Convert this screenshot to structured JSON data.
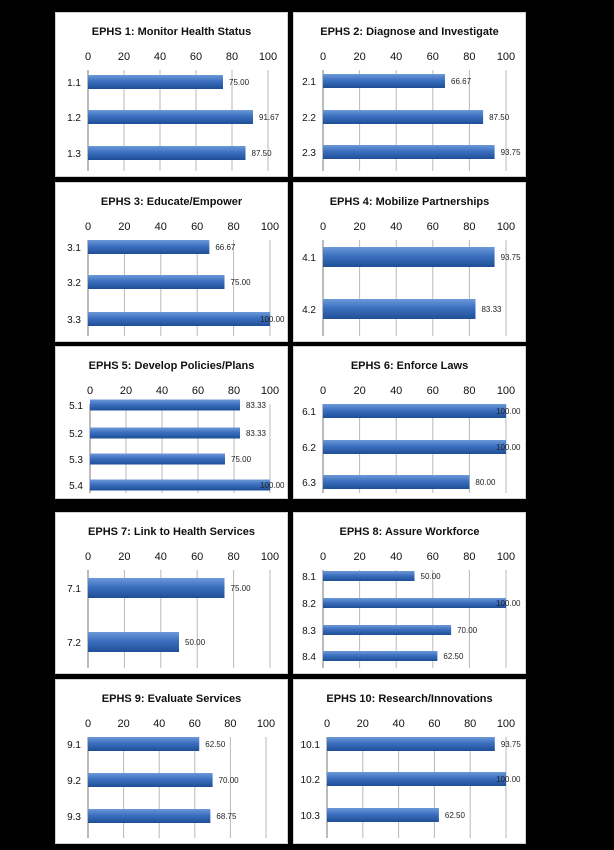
{
  "colors": {
    "bar": "#3b6fbf",
    "bar_light": "#6d99d8",
    "bar_dark": "#1f4e96",
    "grid": "#b8b8b8"
  },
  "chart_data": [
    {
      "type": "bar",
      "orientation": "horizontal",
      "title": "EPHS 1: Monitor Health Status",
      "categories": [
        "1.1",
        "1.2",
        "1.3"
      ],
      "values": [
        75.0,
        91.67,
        87.5
      ],
      "data_labels": [
        "75.00",
        "91.67",
        "87.50"
      ],
      "xlim": [
        0,
        100
      ],
      "xticks": [
        "0",
        "20",
        "40",
        "60",
        "80",
        "100"
      ],
      "grid": true,
      "axis_position": "top"
    },
    {
      "type": "bar",
      "orientation": "horizontal",
      "title": "EPHS 2: Diagnose and Investigate",
      "categories": [
        "2.1",
        "2.2",
        "2.3"
      ],
      "values": [
        66.67,
        87.5,
        93.75
      ],
      "data_labels": [
        "66.67",
        "87.50",
        "93.75"
      ],
      "xlim": [
        0,
        100
      ],
      "xticks": [
        "0",
        "20",
        "40",
        "60",
        "80",
        "100"
      ],
      "grid": true,
      "axis_position": "top"
    },
    {
      "type": "bar",
      "orientation": "horizontal",
      "title": "EPHS 3: Educate/Empower",
      "categories": [
        "3.1",
        "3.2",
        "3.3"
      ],
      "values": [
        66.67,
        75.0,
        100.0
      ],
      "data_labels": [
        "66.67",
        "75.00",
        "100.00"
      ],
      "xlim": [
        0,
        100
      ],
      "xticks": [
        "0",
        "20",
        "40",
        "60",
        "80",
        "100"
      ],
      "grid": true,
      "axis_position": "top"
    },
    {
      "type": "bar",
      "orientation": "horizontal",
      "title": "EPHS 4: Mobilize Partnerships",
      "categories": [
        "4.1",
        "4.2"
      ],
      "values": [
        93.75,
        83.33
      ],
      "data_labels": [
        "93.75",
        "83.33"
      ],
      "xlim": [
        0,
        100
      ],
      "xticks": [
        "0",
        "20",
        "40",
        "60",
        "80",
        "100"
      ],
      "grid": true,
      "axis_position": "top"
    },
    {
      "type": "bar",
      "orientation": "horizontal",
      "title": "EPHS 5: Develop Policies/Plans",
      "categories": [
        "5.1",
        "5.2",
        "5.3",
        "5.4"
      ],
      "values": [
        83.33,
        83.33,
        75.0,
        100.0
      ],
      "data_labels": [
        "83.33",
        "83.33",
        "75.00",
        "100.00"
      ],
      "xlim": [
        0,
        100
      ],
      "xticks": [
        "0",
        "20",
        "40",
        "60",
        "80",
        "100"
      ],
      "grid": true,
      "axis_position": "top"
    },
    {
      "type": "bar",
      "orientation": "horizontal",
      "title": "EPHS 6: Enforce Laws",
      "categories": [
        "6.1",
        "6.2",
        "6.3"
      ],
      "values": [
        100.0,
        100.0,
        80.0
      ],
      "data_labels": [
        "100.00",
        "100.00",
        "80.00"
      ],
      "xlim": [
        0,
        100
      ],
      "xticks": [
        "0",
        "20",
        "40",
        "60",
        "80",
        "100"
      ],
      "grid": true,
      "axis_position": "top"
    },
    {
      "type": "bar",
      "orientation": "horizontal",
      "title": "EPHS 7: Link to Health Services",
      "categories": [
        "7.1",
        "7.2"
      ],
      "values": [
        75.0,
        50.0
      ],
      "data_labels": [
        "75.00",
        "50.00"
      ],
      "xlim": [
        0,
        100
      ],
      "xticks": [
        "0",
        "20",
        "40",
        "60",
        "80",
        "100"
      ],
      "grid": true,
      "axis_position": "top"
    },
    {
      "type": "bar",
      "orientation": "horizontal",
      "title": "EPHS 8: Assure Workforce",
      "categories": [
        "8.1",
        "8.2",
        "8.3",
        "8.4"
      ],
      "values": [
        50.0,
        100.0,
        70.0,
        62.5
      ],
      "data_labels": [
        "50.00",
        "100.00",
        "70.00",
        "62.50"
      ],
      "xlim": [
        0,
        100
      ],
      "xticks": [
        "0",
        "20",
        "40",
        "60",
        "80",
        "100"
      ],
      "grid": true,
      "axis_position": "top"
    },
    {
      "type": "bar",
      "orientation": "horizontal",
      "title": "EPHS 9: Evaluate Services",
      "categories": [
        "9.1",
        "9.2",
        "9.3"
      ],
      "values": [
        62.5,
        70.0,
        68.75
      ],
      "data_labels": [
        "62.50",
        "70.00",
        "68.75"
      ],
      "xlim": [
        0,
        100
      ],
      "xticks": [
        "0",
        "20",
        "40",
        "60",
        "80",
        "100"
      ],
      "grid": true,
      "axis_position": "top"
    },
    {
      "type": "bar",
      "orientation": "horizontal",
      "title": "EPHS 10: Research/Innovations",
      "categories": [
        "10.1",
        "10.2",
        "10.3"
      ],
      "values": [
        93.75,
        100.0,
        62.5
      ],
      "data_labels": [
        "93.75",
        "100.00",
        "62.50"
      ],
      "xlim": [
        0,
        100
      ],
      "xticks": [
        "0",
        "20",
        "40",
        "60",
        "80",
        "100"
      ],
      "grid": true,
      "axis_position": "top"
    }
  ]
}
